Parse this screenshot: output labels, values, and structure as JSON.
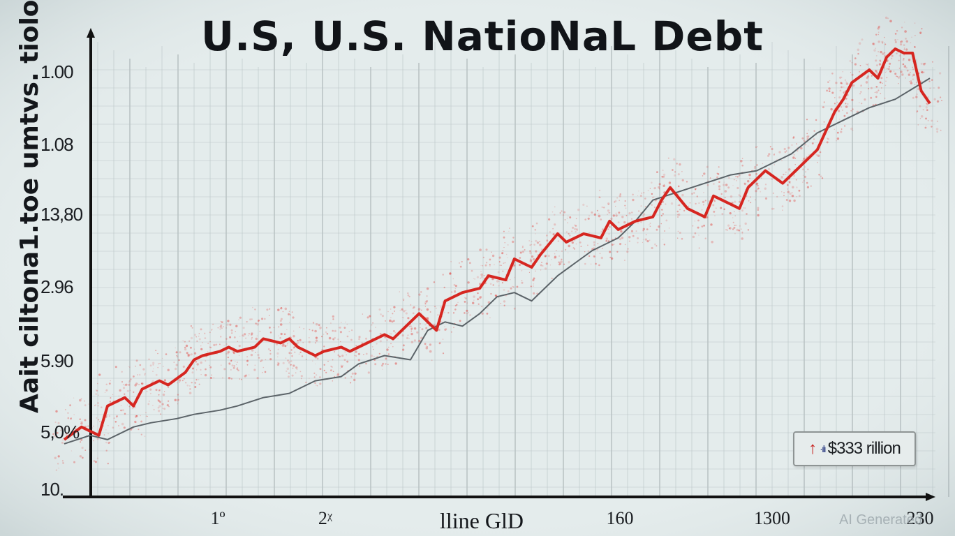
{
  "chart_data": {
    "type": "line",
    "title": "U.S, U.S. NatioNaL Debt",
    "ylabel": "Aait ciltona1.toe umtvs. tiolo",
    "xlabel": "lline GlD",
    "y_ticks": [
      "1.00",
      "1.08",
      "13,80",
      "2.96",
      "5.90",
      "5,0%",
      "10."
    ],
    "x_ticks": [
      "1º",
      "2ᵡ",
      "160",
      "1300",
      "230"
    ],
    "ylim": [
      0,
      100
    ],
    "xlim": [
      0,
      100
    ],
    "grid": true,
    "series": [
      {
        "color": "#d62620",
        "x": [
          0,
          2,
          4,
          5,
          7,
          8,
          9,
          11,
          12,
          14,
          15,
          16,
          18,
          19,
          20,
          22,
          23,
          25,
          26,
          27,
          29,
          30,
          32,
          33,
          35,
          37,
          38,
          40,
          41,
          43,
          44,
          46,
          48,
          49,
          51,
          52,
          54,
          55,
          57,
          58,
          60,
          62,
          63,
          64,
          66,
          68,
          69,
          70,
          72,
          74,
          75,
          77,
          78,
          79,
          81,
          83,
          84,
          85,
          87,
          89,
          90,
          91,
          93,
          94,
          95,
          96,
          97,
          98,
          99,
          100
        ],
        "y": [
          7,
          10,
          8,
          15,
          17,
          15,
          19,
          21,
          20,
          23,
          26,
          27,
          28,
          29,
          28,
          29,
          31,
          30,
          31,
          29,
          27,
          28,
          29,
          28,
          30,
          32,
          31,
          35,
          37,
          33,
          40,
          42,
          43,
          46,
          45,
          50,
          48,
          51,
          56,
          54,
          56,
          55,
          59,
          57,
          59,
          60,
          64,
          67,
          62,
          60,
          65,
          63,
          62,
          67,
          71,
          68,
          70,
          72,
          76,
          85,
          88,
          92,
          95,
          93,
          98,
          100,
          99,
          99,
          90,
          87
        ]
      },
      {
        "color": "#5b6368",
        "x": [
          0,
          3,
          5,
          8,
          10,
          13,
          15,
          18,
          20,
          23,
          26,
          29,
          32,
          34,
          37,
          40,
          42,
          44,
          46,
          48,
          50,
          52,
          54,
          57,
          59,
          61,
          64,
          66,
          68,
          71,
          74,
          77,
          80,
          84,
          87,
          90,
          93,
          96,
          100
        ],
        "y": [
          6,
          8,
          7,
          10,
          11,
          12,
          13,
          14,
          15,
          17,
          18,
          21,
          22,
          25,
          27,
          26,
          33,
          35,
          34,
          37,
          41,
          42,
          40,
          46,
          49,
          52,
          55,
          59,
          64,
          66,
          68,
          70,
          71,
          75,
          80,
          83,
          86,
          88,
          93
        ]
      }
    ],
    "annotations": [
      {
        "text": "$333 rillion",
        "marker": "↑ ·ılı"
      }
    ]
  },
  "watermark": "AI Generated"
}
